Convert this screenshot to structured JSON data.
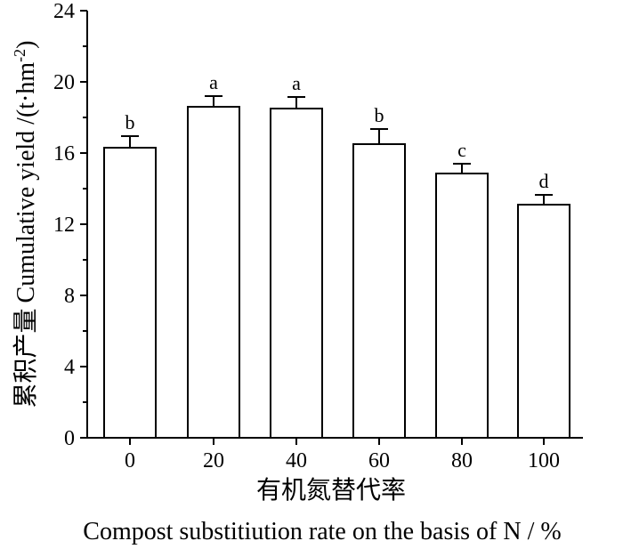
{
  "chart_data": {
    "type": "bar",
    "categories": [
      "0",
      "20",
      "40",
      "60",
      "80",
      "100"
    ],
    "values": [
      16.3,
      18.6,
      18.5,
      16.5,
      14.85,
      13.1
    ],
    "errors": [
      0.65,
      0.6,
      0.65,
      0.85,
      0.55,
      0.55
    ],
    "significance_labels": [
      "b",
      "a",
      "a",
      "b",
      "c",
      "d"
    ],
    "ylim": [
      0,
      24
    ],
    "yticks": [
      0,
      4,
      8,
      12,
      16,
      20,
      24
    ],
    "ylabel_cn": "累积产量",
    "ylabel_en": "Cumulative yield /(t·hm",
    "ylabel_unit_exp": "-2",
    "ylabel_close": ")",
    "xlabel_cn": "有机氮替代率",
    "xlabel_en": "Compost substitiution rate on the basis of N / %",
    "grid": false,
    "colors": {
      "bar_fill": "#ffffff",
      "stroke": "#000000"
    }
  }
}
